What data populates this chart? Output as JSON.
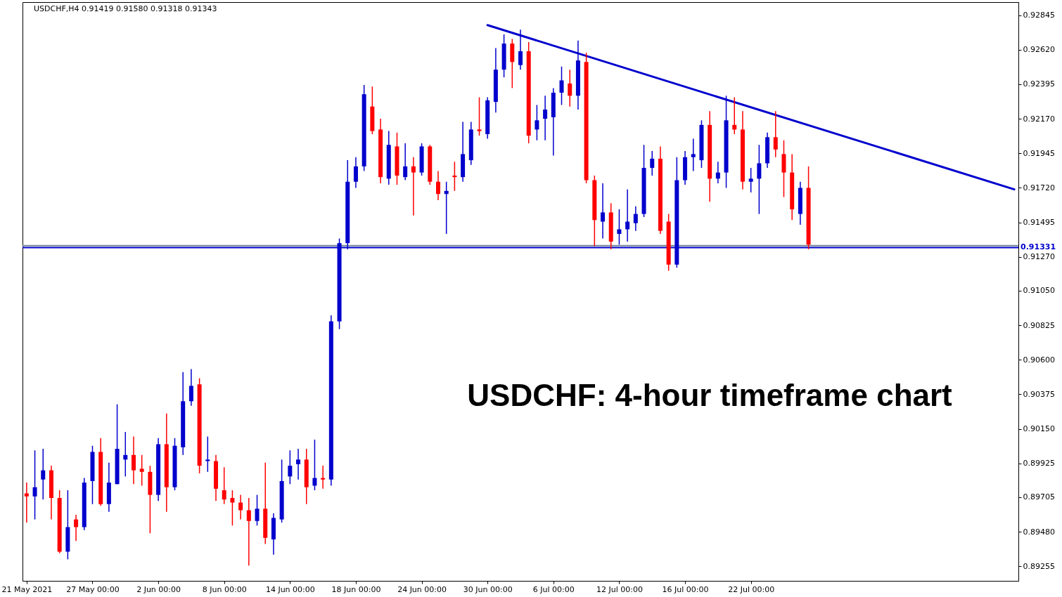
{
  "chart_data": {
    "type": "candlestick",
    "title": "USDCHF,H4 0.91419 0.91580 0.91318 0.91343",
    "annotations": [
      "USDCHF: 4-hour timeframe chart"
    ],
    "categories": [
      "21 May 2021",
      null,
      null,
      null,
      null,
      null,
      null,
      null,
      "27 May 00:00",
      null,
      null,
      null,
      null,
      null,
      null,
      null,
      "2 Jun 00:00",
      null,
      null,
      null,
      null,
      null,
      null,
      null,
      "8 Jun 00:00",
      null,
      null,
      null,
      null,
      null,
      null,
      null,
      "14 Jun 00:00",
      null,
      null,
      null,
      null,
      null,
      null,
      null,
      "18 Jun 00:00",
      null,
      null,
      null,
      null,
      null,
      null,
      null,
      "24 Jun 00:00",
      null,
      null,
      null,
      null,
      null,
      null,
      null,
      "30 Jun 00:00",
      null,
      null,
      null,
      null,
      null,
      null,
      null,
      "6 Jul 00:00",
      null,
      null,
      null,
      null,
      null,
      null,
      null,
      "12 Jul 00:00",
      null,
      null,
      null,
      null,
      null,
      null,
      null,
      "16 Jul 00:00",
      null,
      null,
      null,
      null,
      null,
      null,
      null,
      "22 Jul 00:00",
      null,
      null,
      null,
      null,
      null,
      null,
      null,
      null,
      null,
      null,
      null,
      null,
      null,
      null,
      null,
      null,
      null,
      null,
      null,
      null,
      null,
      null,
      null,
      null,
      null,
      null,
      null,
      null,
      null,
      null,
      null,
      null
    ],
    "ohlc": [
      [
        0.8973,
        0.898,
        0.8954,
        0.8971
      ],
      [
        0.8971,
        0.9001,
        0.8956,
        0.8977
      ],
      [
        0.8982,
        0.9002,
        0.8969,
        0.8988
      ],
      [
        0.8988,
        0.8991,
        0.8956,
        0.897
      ],
      [
        0.897,
        0.8975,
        0.8934,
        0.8935
      ],
      [
        0.8935,
        0.8975,
        0.893,
        0.8951
      ],
      [
        0.8956,
        0.8959,
        0.8942,
        0.8951
      ],
      [
        0.8951,
        0.8983,
        0.8949,
        0.898
      ],
      [
        0.8981,
        0.9004,
        0.8966,
        0.9
      ],
      [
        0.9,
        0.9009,
        0.8965,
        0.8966
      ],
      [
        0.8966,
        0.8993,
        0.8961,
        0.898
      ],
      [
        0.8979,
        0.9031,
        0.8979,
        0.9002
      ],
      [
        0.8995,
        0.9013,
        0.8984,
        0.8998
      ],
      [
        0.8998,
        0.901,
        0.8979,
        0.8988
      ],
      [
        0.8989,
        0.8998,
        0.8978,
        0.8987
      ],
      [
        0.8987,
        0.8991,
        0.8947,
        0.8972
      ],
      [
        0.8972,
        0.9009,
        0.8968,
        0.9005
      ],
      [
        0.9005,
        0.9025,
        0.8961,
        0.8977
      ],
      [
        0.8977,
        0.9009,
        0.8975,
        0.9004
      ],
      [
        0.9003,
        0.9052,
        0.8998,
        0.9033
      ],
      [
        0.9033,
        0.9054,
        0.903,
        0.9043
      ],
      [
        0.9044,
        0.9048,
        0.8986,
        0.8991
      ],
      [
        0.8994,
        0.901,
        0.8987,
        0.8995
      ],
      [
        0.8994,
        0.8998,
        0.8968,
        0.8976
      ],
      [
        0.8975,
        0.899,
        0.8966,
        0.8969
      ],
      [
        0.897,
        0.8975,
        0.8952,
        0.8967
      ],
      [
        0.8967,
        0.8972,
        0.8956,
        0.8962
      ],
      [
        0.8962,
        0.897,
        0.8926,
        0.8955
      ],
      [
        0.8955,
        0.8972,
        0.8952,
        0.8963
      ],
      [
        0.8963,
        0.8993,
        0.894,
        0.8944
      ],
      [
        0.8943,
        0.896,
        0.8933,
        0.8957
      ],
      [
        0.8956,
        0.8995,
        0.8954,
        0.8981
      ],
      [
        0.8984,
        0.9001,
        0.8979,
        0.8991
      ],
      [
        0.8992,
        0.9002,
        0.8982,
        0.8995
      ],
      [
        0.8995,
        0.9002,
        0.8966,
        0.8977
      ],
      [
        0.8978,
        0.9008,
        0.8975,
        0.8983
      ],
      [
        0.8983,
        0.8991,
        0.8976,
        0.8982
      ],
      [
        0.8982,
        0.9089,
        0.8978,
        0.9085
      ],
      [
        0.9085,
        0.9139,
        0.908,
        0.9136
      ],
      [
        0.9136,
        0.919,
        0.9132,
        0.9176
      ],
      [
        0.9176,
        0.9192,
        0.9172,
        0.9186
      ],
      [
        0.9186,
        0.9239,
        0.9183,
        0.9233
      ],
      [
        0.9225,
        0.9238,
        0.9207,
        0.9209
      ],
      [
        0.921,
        0.9217,
        0.9175,
        0.9179
      ],
      [
        0.9178,
        0.9209,
        0.9174,
        0.92
      ],
      [
        0.9199,
        0.9208,
        0.9174,
        0.918
      ],
      [
        0.9179,
        0.9201,
        0.9177,
        0.9186
      ],
      [
        0.9186,
        0.9192,
        0.9154,
        0.9182
      ],
      [
        0.9182,
        0.9201,
        0.918,
        0.9199
      ],
      [
        0.9199,
        0.92,
        0.9174,
        0.9176
      ],
      [
        0.9176,
        0.9183,
        0.9164,
        0.9168
      ],
      [
        0.9168,
        0.9176,
        0.9142,
        0.917
      ],
      [
        0.918,
        0.9189,
        0.917,
        0.9179
      ],
      [
        0.9179,
        0.9215,
        0.9176,
        0.9194
      ],
      [
        0.919,
        0.9215,
        0.9187,
        0.921
      ],
      [
        0.921,
        0.9231,
        0.9206,
        0.9209
      ],
      [
        0.9207,
        0.9231,
        0.9204,
        0.9229
      ],
      [
        0.9228,
        0.9263,
        0.9221,
        0.9249
      ],
      [
        0.9249,
        0.9272,
        0.9244,
        0.9266
      ],
      [
        0.9266,
        0.9269,
        0.9237,
        0.9254
      ],
      [
        0.9252,
        0.9275,
        0.9249,
        0.9261
      ],
      [
        0.9261,
        0.9267,
        0.9201,
        0.9206
      ],
      [
        0.921,
        0.9226,
        0.9203,
        0.9216
      ],
      [
        0.9217,
        0.9232,
        0.9203,
        0.9223
      ],
      [
        0.9218,
        0.9237,
        0.9193,
        0.9234
      ],
      [
        0.9234,
        0.9251,
        0.9226,
        0.9242
      ],
      [
        0.924,
        0.9249,
        0.9225,
        0.9232
      ],
      [
        0.9232,
        0.9268,
        0.9223,
        0.9255
      ],
      [
        0.9254,
        0.926,
        0.9175,
        0.9177
      ],
      [
        0.9177,
        0.918,
        0.9134,
        0.9151
      ],
      [
        0.915,
        0.9175,
        0.9139,
        0.9156
      ],
      [
        0.9156,
        0.9162,
        0.9132,
        0.9137
      ],
      [
        0.9142,
        0.9158,
        0.9135,
        0.9145
      ],
      [
        0.9145,
        0.9171,
        0.9137,
        0.915
      ],
      [
        0.9149,
        0.916,
        0.9144,
        0.9155
      ],
      [
        0.9155,
        0.92,
        0.9153,
        0.9185
      ],
      [
        0.9185,
        0.9196,
        0.918,
        0.9191
      ],
      [
        0.9191,
        0.9199,
        0.9142,
        0.9144
      ],
      [
        0.915,
        0.9155,
        0.9118,
        0.9122
      ],
      [
        0.9122,
        0.9192,
        0.912,
        0.9177
      ],
      [
        0.9177,
        0.9196,
        0.9174,
        0.9192
      ],
      [
        0.9192,
        0.9204,
        0.9183,
        0.9194
      ],
      [
        0.919,
        0.9216,
        0.9185,
        0.9213
      ],
      [
        0.9213,
        0.9222,
        0.9163,
        0.9178
      ],
      [
        0.9178,
        0.9189,
        0.9175,
        0.9182
      ],
      [
        0.9182,
        0.9232,
        0.9172,
        0.9216
      ],
      [
        0.9213,
        0.9231,
        0.9207,
        0.921
      ],
      [
        0.921,
        0.9222,
        0.9171,
        0.9176
      ],
      [
        0.9176,
        0.9185,
        0.9169,
        0.9178
      ],
      [
        0.9178,
        0.92,
        0.9155,
        0.9188
      ],
      [
        0.9188,
        0.9208,
        0.9185,
        0.9205
      ],
      [
        0.9205,
        0.9222,
        0.9192,
        0.9197
      ],
      [
        0.9194,
        0.9203,
        0.9166,
        0.9182
      ],
      [
        0.9182,
        0.9194,
        0.9151,
        0.9158
      ],
      [
        0.9155,
        0.9176,
        0.9148,
        0.9172
      ],
      [
        0.9172,
        0.9186,
        0.9132,
        0.9135
      ],
      null,
      null,
      null,
      null,
      null,
      null,
      null,
      null,
      null,
      null,
      null,
      null,
      null,
      null,
      null,
      null,
      null,
      null,
      null,
      null,
      null,
      null,
      null,
      null,
      null
    ],
    "colors": [
      "#ff0000",
      "#0000cd",
      "#0000cd",
      "#ff0000",
      "#ff0000",
      "#0000cd",
      "#ff0000",
      "#0000cd",
      "#0000cd",
      "#ff0000",
      "#0000cd",
      "#0000cd",
      "#0000cd",
      "#ff0000",
      "#ff0000",
      "#ff0000",
      "#0000cd",
      "#ff0000",
      "#0000cd",
      "#0000cd",
      "#0000cd",
      "#ff0000",
      "#0000cd",
      "#ff0000",
      "#ff0000",
      "#ff0000",
      "#ff0000",
      "#ff0000",
      "#0000cd",
      "#ff0000",
      "#0000cd",
      "#0000cd",
      "#0000cd",
      "#0000cd",
      "#ff0000",
      "#0000cd",
      "#ff0000",
      "#0000cd",
      "#0000cd",
      "#0000cd",
      "#0000cd",
      "#0000cd",
      "#ff0000",
      "#ff0000",
      "#0000cd",
      "#ff0000",
      "#0000cd",
      "#ff0000",
      "#0000cd",
      "#ff0000",
      "#ff0000",
      "#0000cd",
      "#ff0000",
      "#0000cd",
      "#0000cd",
      "#ff0000",
      "#0000cd",
      "#0000cd",
      "#0000cd",
      "#ff0000",
      "#0000cd",
      "#ff0000",
      "#0000cd",
      "#0000cd",
      "#0000cd",
      "#0000cd",
      "#ff0000",
      "#0000cd",
      "#ff0000",
      "#ff0000",
      "#0000cd",
      "#ff0000",
      "#0000cd",
      "#0000cd",
      "#0000cd",
      "#0000cd",
      "#0000cd",
      "#ff0000",
      "#ff0000",
      "#0000cd",
      "#0000cd",
      "#0000cd",
      "#0000cd",
      "#ff0000",
      "#0000cd",
      "#0000cd",
      "#ff0000",
      "#ff0000",
      "#0000cd",
      "#0000cd",
      "#0000cd",
      "#ff0000",
      "#ff0000",
      "#ff0000",
      "#0000cd",
      "#ff0000",
      null,
      null,
      null,
      null,
      null,
      null,
      null,
      null,
      null,
      null,
      null,
      null,
      null,
      null,
      null,
      null,
      null,
      null,
      null,
      null,
      null,
      null,
      null,
      null,
      null
    ],
    "series": [
      {
        "type": "line",
        "color": "#0000cd",
        "values": [
          null,
          null,
          null,
          null,
          null,
          null,
          null,
          null,
          null,
          null,
          null,
          null,
          null,
          null,
          null,
          null,
          null,
          null,
          null,
          null,
          null,
          null,
          null,
          null,
          null,
          null,
          null,
          null,
          null,
          null,
          null,
          null,
          null,
          null,
          null,
          null,
          null,
          null,
          null,
          null,
          null,
          null,
          null,
          null,
          null,
          null,
          null,
          null,
          null,
          null,
          null,
          null,
          null,
          null,
          null,
          null,
          0.9278,
          null,
          null,
          null,
          null,
          null,
          null,
          null,
          null,
          null,
          null,
          null,
          null,
          null,
          null,
          null,
          null,
          null,
          null,
          null,
          null,
          null,
          null,
          null,
          null,
          null,
          null,
          null,
          null,
          null,
          null,
          null,
          null,
          null,
          null,
          null,
          null,
          null,
          null,
          null,
          null,
          null,
          null,
          null,
          null,
          null,
          null,
          null,
          null,
          null,
          null,
          null,
          null,
          null,
          null,
          null,
          null,
          null,
          null,
          null,
          null,
          null,
          null,
          null,
          0.9171
        ]
      }
    ],
    "ref_lines": [
      {
        "axis": "y",
        "value": 0.91343,
        "label": null,
        "color": "#778899"
      },
      {
        "axis": "y",
        "value": 0.91331,
        "label": "0.91331",
        "color": "#0000cd"
      }
    ],
    "ylim": [
      0.8916,
      0.9293
    ],
    "yticks": [
      0.92845,
      {
        "value": 0.9262,
        "label": "0.92620"
      },
      0.92395,
      {
        "value": 0.9217,
        "label": "0.92170"
      },
      0.91945,
      {
        "value": 0.9172,
        "label": "0.91720"
      },
      0.91495,
      {
        "value": 0.9127,
        "label": "0.91270"
      },
      {
        "value": 0.9105,
        "label": "0.91050"
      },
      0.90825,
      {
        "value": 0.906,
        "label": "0.90600"
      },
      0.90375,
      {
        "value": 0.9015,
        "label": "0.90150"
      },
      0.89925,
      0.89705,
      {
        "value": 0.8948,
        "label": "0.89480"
      },
      0.89255
    ],
    "grid": false
  }
}
